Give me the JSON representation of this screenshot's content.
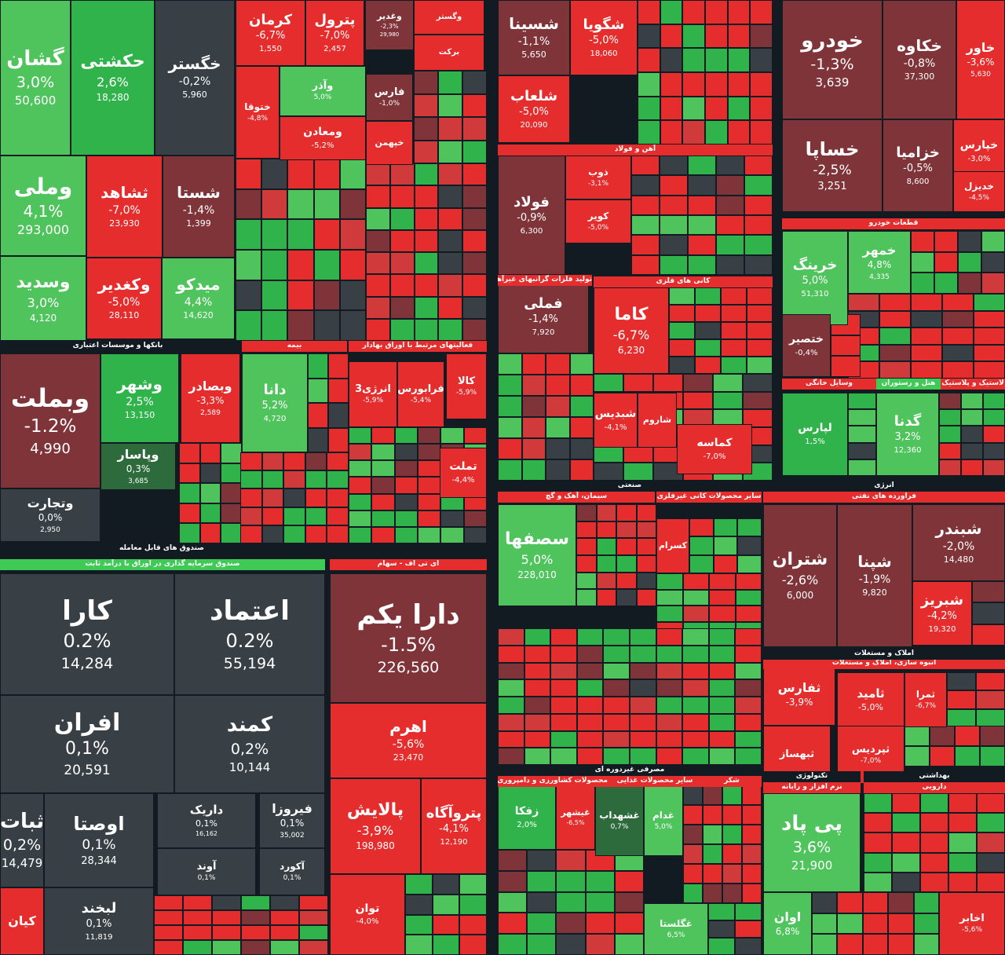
{
  "chart_data": {
    "type": "treemap",
    "colors": {
      "strong_red": "#e52d2d",
      "red": "#d13a3a",
      "dark_red": "#7e3438",
      "neutral": "#394045",
      "light_green": "#4fc35c",
      "strong_green": "#2fb34a",
      "dark_green": "#2e6b3c",
      "background": "#121a22"
    },
    "tiles": [
      {
        "symbol": "گشان",
        "change": "3,0%",
        "price": "50,600"
      },
      {
        "symbol": "حکشتی",
        "change": "2,6%",
        "price": "18,280"
      },
      {
        "symbol": "خگستر",
        "change": "-0,2%",
        "price": "5,960"
      },
      {
        "symbol": "وملی",
        "change": "4,1%",
        "price": "293,000"
      },
      {
        "symbol": "ثشاهد",
        "change": "-7,0%",
        "price": "23,930"
      },
      {
        "symbol": "شستا",
        "change": "-1,4%",
        "price": "1,399"
      },
      {
        "symbol": "وسدید",
        "change": "3,0%",
        "price": "4,120"
      },
      {
        "symbol": "وکغدیر",
        "change": "-5,0%",
        "price": "28,110"
      },
      {
        "symbol": "میدکو",
        "change": "4,4%",
        "price": "14,620"
      },
      {
        "symbol": "کرمان",
        "change": "-6,7%",
        "price": "1,550"
      },
      {
        "symbol": "پترول",
        "change": "-7,0%",
        "price": "2,457"
      },
      {
        "symbol": "وغدیر",
        "change": "-2,3%",
        "price": "29,980"
      },
      {
        "symbol": "وگستر",
        "change": "",
        "price": ""
      },
      {
        "symbol": "برکت",
        "change": "",
        "price": ""
      },
      {
        "symbol": "ختوقا",
        "change": "-4,8%",
        "price": ""
      },
      {
        "symbol": "وآذر",
        "change": "5,0%",
        "price": ""
      },
      {
        "symbol": "فارس",
        "change": "-1,0%",
        "price": ""
      },
      {
        "symbol": "ومعادن",
        "change": "-5,2%",
        "price": ""
      },
      {
        "symbol": "خپهمن",
        "change": "",
        "price": ""
      },
      {
        "symbol": "شسینا",
        "change": "-1,1%",
        "price": "5,650"
      },
      {
        "symbol": "شگویا",
        "change": "-5,0%",
        "price": "18,060"
      },
      {
        "symbol": "شلعاب",
        "change": "-5,0%",
        "price": "20,090"
      },
      {
        "symbol": "فولاد",
        "change": "-0,9%",
        "price": "6,300"
      },
      {
        "symbol": "ذوب",
        "change": "-3,1%",
        "price": ""
      },
      {
        "symbol": "کویر",
        "change": "-5,0%",
        "price": ""
      },
      {
        "symbol": "فملی",
        "change": "-1,4%",
        "price": "7,920"
      },
      {
        "symbol": "کاما",
        "change": "-6,7%",
        "price": "6,230"
      },
      {
        "symbol": "شبدیس",
        "change": "-4,1%",
        "price": ""
      },
      {
        "symbol": "شاروم",
        "change": "",
        "price": ""
      },
      {
        "symbol": "کماسه",
        "change": "-7,0%",
        "price": ""
      },
      {
        "symbol": "خودرو",
        "change": "-1,3%",
        "price": "3,639"
      },
      {
        "symbol": "خکاوه",
        "change": "-0,8%",
        "price": "37,300"
      },
      {
        "symbol": "خاور",
        "change": "-3,6%",
        "price": "5,630"
      },
      {
        "symbol": "خساپا",
        "change": "-2,5%",
        "price": "3,251"
      },
      {
        "symbol": "خزامیا",
        "change": "-0,5%",
        "price": "8,600"
      },
      {
        "symbol": "خپارس",
        "change": "-3,0%",
        "price": ""
      },
      {
        "symbol": "خدیزل",
        "change": "-4,5%",
        "price": ""
      },
      {
        "symbol": "خرینگ",
        "change": "5,0%",
        "price": "51,310"
      },
      {
        "symbol": "خمهر",
        "change": "4,8%",
        "price": "4,335"
      },
      {
        "symbol": "ختصیر",
        "change": "-0,4%",
        "price": ""
      },
      {
        "symbol": "لپارس",
        "change": "1,5%",
        "price": ""
      },
      {
        "symbol": "گدنا",
        "change": "3,2%",
        "price": "12,360"
      },
      {
        "symbol": "وبملت",
        "change": "-1.2%",
        "price": "4,990"
      },
      {
        "symbol": "وشهر",
        "change": "2,5%",
        "price": "13,150"
      },
      {
        "symbol": "وبصادر",
        "change": "-3,3%",
        "price": "2,589"
      },
      {
        "symbol": "وپاسار",
        "change": "0,3%",
        "price": "3,685"
      },
      {
        "symbol": "وتجارت",
        "change": "0,0%",
        "price": "2,950"
      },
      {
        "symbol": "دانا",
        "change": "5,2%",
        "price": "4,720"
      },
      {
        "symbol": "انرژی3",
        "change": "-5,9%",
        "price": ""
      },
      {
        "symbol": "فرابورس",
        "change": "-5,4%",
        "price": ""
      },
      {
        "symbol": "کالا",
        "change": "-5,9%",
        "price": ""
      },
      {
        "symbol": "تملت",
        "change": "-4,4%",
        "price": ""
      },
      {
        "symbol": "کارا",
        "change": "0.2%",
        "price": "14,284"
      },
      {
        "symbol": "اعتماد",
        "change": "0.2%",
        "price": "55,194"
      },
      {
        "symbol": "افران",
        "change": "0,1%",
        "price": "20,591"
      },
      {
        "symbol": "کمند",
        "change": "0,2%",
        "price": "10,144"
      },
      {
        "symbol": "ثبات",
        "change": "0,2%",
        "price": "14,479"
      },
      {
        "symbol": "اوصتا",
        "change": "0,1%",
        "price": "28,344"
      },
      {
        "symbol": "داریک",
        "change": "0,1%",
        "price": "16,162"
      },
      {
        "symbol": "فیروزا",
        "change": "0,1%",
        "price": "35,002"
      },
      {
        "symbol": "آوند",
        "change": "0,1%",
        "price": ""
      },
      {
        "symbol": "آکورد",
        "change": "0,1%",
        "price": ""
      },
      {
        "symbol": "لبخند",
        "change": "0,1%",
        "price": "11,819"
      },
      {
        "symbol": "کیان",
        "change": "",
        "price": ""
      },
      {
        "symbol": "دارا یکم",
        "change": "-1.5%",
        "price": "226,560"
      },
      {
        "symbol": "اهرم",
        "change": "-5,6%",
        "price": "23,470"
      },
      {
        "symbol": "پالایش",
        "change": "-3,9%",
        "price": "198,980"
      },
      {
        "symbol": "پتروآگاه",
        "change": "-4,1%",
        "price": "12,190"
      },
      {
        "symbol": "توان",
        "change": "-4,0%",
        "price": ""
      },
      {
        "symbol": "سصفها",
        "change": "5,0%",
        "price": "228,010"
      },
      {
        "symbol": "کسرام",
        "change": "",
        "price": ""
      },
      {
        "symbol": "شتران",
        "change": "-2,6%",
        "price": "6,000"
      },
      {
        "symbol": "شپنا",
        "change": "-1,9%",
        "price": "9,820"
      },
      {
        "symbol": "شبندر",
        "change": "-2,0%",
        "price": "14,480"
      },
      {
        "symbol": "شبریز",
        "change": "-4,2%",
        "price": "19,320"
      },
      {
        "symbol": "ثفارس",
        "change": "-3,9%",
        "price": ""
      },
      {
        "symbol": "ثامید",
        "change": "-5,0%",
        "price": ""
      },
      {
        "symbol": "ثمرا",
        "change": "-6,7%",
        "price": ""
      },
      {
        "symbol": "ثبهساز",
        "change": "",
        "price": ""
      },
      {
        "symbol": "ثپردیس",
        "change": "-7,0%",
        "price": ""
      },
      {
        "symbol": "زفکا",
        "change": "2,0%",
        "price": ""
      },
      {
        "symbol": "غشهداب",
        "change": "0,7%",
        "price": ""
      },
      {
        "symbol": "غدام",
        "change": "5,0%",
        "price": ""
      },
      {
        "symbol": "غیشهر",
        "change": "-6,5%",
        "price": ""
      },
      {
        "symbol": "غگلستا",
        "change": "6,5%",
        "price": ""
      },
      {
        "symbol": "پی پاد",
        "change": "3,6%",
        "price": "21,900"
      },
      {
        "symbol": "اوان",
        "change": "6,8%",
        "price": ""
      },
      {
        "symbol": "اخابر",
        "change": "-5,6%",
        "price": ""
      }
    ],
    "sector_labels": [
      "بانکها و موسسات اعتباری",
      "صندوق های قابل معامله",
      "صندوق سرمایه گذاری در اوراق با درآمد ثابت",
      "ای تی اف - سهام",
      "آهن و فولاد",
      "تولید فلزات گرانبهای غیرآهنی",
      "کانی های فلزی",
      "قطعات خودرو",
      "وسایل خانگی",
      "هتل و رستوران",
      "لاستیک و پلاستیک",
      "بیمه",
      "فعالیتهای مرتبط با اوراق بهادار",
      "انبوه سازی، املاک و مستغلات",
      "املاک و مستغلات",
      "صنعتی",
      "سیمان، آهک و گچ",
      "سایر محصولات کانی غیرفلزی",
      "انرژی",
      "فراورده های نفتی",
      "مصرفی غیردوره ای",
      "محصولات کشاورزی و دامپروری",
      "سایر محصولات غذایی",
      "شکر",
      "تکنولوژی",
      "نرم افزار و رایانه",
      "بهداشتی",
      "دارویی"
    ]
  }
}
